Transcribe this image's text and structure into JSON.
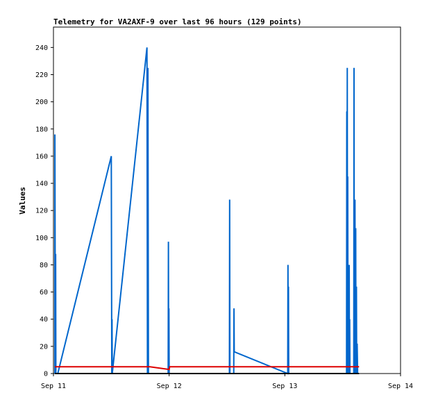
{
  "chart_data": {
    "type": "line",
    "title": "Telemetry for VA2AXF-9 over last 96 hours (129 points)",
    "xlabel": "",
    "ylabel": "Values",
    "x_unit": "hours since Sep 11 00:00",
    "xlim": [
      0,
      72
    ],
    "ylim": [
      0,
      255
    ],
    "x_ticks": [
      {
        "value": 0,
        "label": "Sep 11"
      },
      {
        "value": 24,
        "label": "Sep 12"
      },
      {
        "value": 48,
        "label": "Sep 13"
      },
      {
        "value": 72,
        "label": "Sep 14"
      }
    ],
    "y_ticks": [
      0,
      20,
      40,
      60,
      80,
      100,
      120,
      140,
      160,
      180,
      200,
      220,
      240
    ],
    "grid": false,
    "legend": "none",
    "series": [
      {
        "color": "#0066cc",
        "points": [
          [
            0.3,
            0
          ],
          [
            0.3,
            176
          ],
          [
            0.4,
            0
          ],
          [
            0.45,
            88
          ],
          [
            0.5,
            0
          ],
          [
            0.9,
            0
          ],
          [
            12.0,
            160
          ],
          [
            12.1,
            0
          ],
          [
            12.15,
            40
          ],
          [
            12.2,
            0
          ],
          [
            19.4,
            240
          ],
          [
            19.5,
            0
          ],
          [
            19.6,
            225
          ],
          [
            19.7,
            0
          ],
          [
            23.8,
            0
          ],
          [
            23.85,
            97
          ],
          [
            23.9,
            0
          ],
          [
            23.95,
            48
          ],
          [
            24.0,
            0
          ],
          [
            36.5,
            0
          ],
          [
            36.55,
            128
          ],
          [
            36.6,
            0
          ],
          [
            37.4,
            0
          ],
          [
            37.45,
            48
          ],
          [
            37.5,
            16
          ],
          [
            48.6,
            0
          ],
          [
            48.65,
            80
          ],
          [
            48.7,
            0
          ],
          [
            48.75,
            64
          ],
          [
            48.8,
            0
          ],
          [
            60.8,
            0
          ],
          [
            60.85,
            193
          ],
          [
            60.9,
            0
          ],
          [
            60.95,
            225
          ],
          [
            61.0,
            0
          ],
          [
            61.05,
            145
          ],
          [
            61.1,
            0
          ],
          [
            61.2,
            48
          ],
          [
            61.3,
            0
          ],
          [
            61.35,
            80
          ],
          [
            61.4,
            0
          ],
          [
            61.45,
            40
          ],
          [
            61.5,
            0
          ],
          [
            62.3,
            0
          ],
          [
            62.35,
            225
          ],
          [
            62.4,
            0
          ],
          [
            62.45,
            65
          ],
          [
            62.5,
            0
          ],
          [
            62.55,
            128
          ],
          [
            62.6,
            0
          ],
          [
            62.7,
            107
          ],
          [
            62.75,
            0
          ],
          [
            62.85,
            64
          ],
          [
            62.9,
            0
          ],
          [
            63.0,
            22
          ],
          [
            63.1,
            0
          ]
        ]
      },
      {
        "color": "#dd0000",
        "points": [
          [
            0.3,
            5
          ],
          [
            20.0,
            5
          ],
          [
            24.0,
            3
          ],
          [
            24.1,
            5
          ],
          [
            63.4,
            5
          ]
        ]
      },
      {
        "color": "#000000",
        "points": [
          [
            0.3,
            0
          ],
          [
            63.4,
            0
          ]
        ]
      }
    ]
  }
}
